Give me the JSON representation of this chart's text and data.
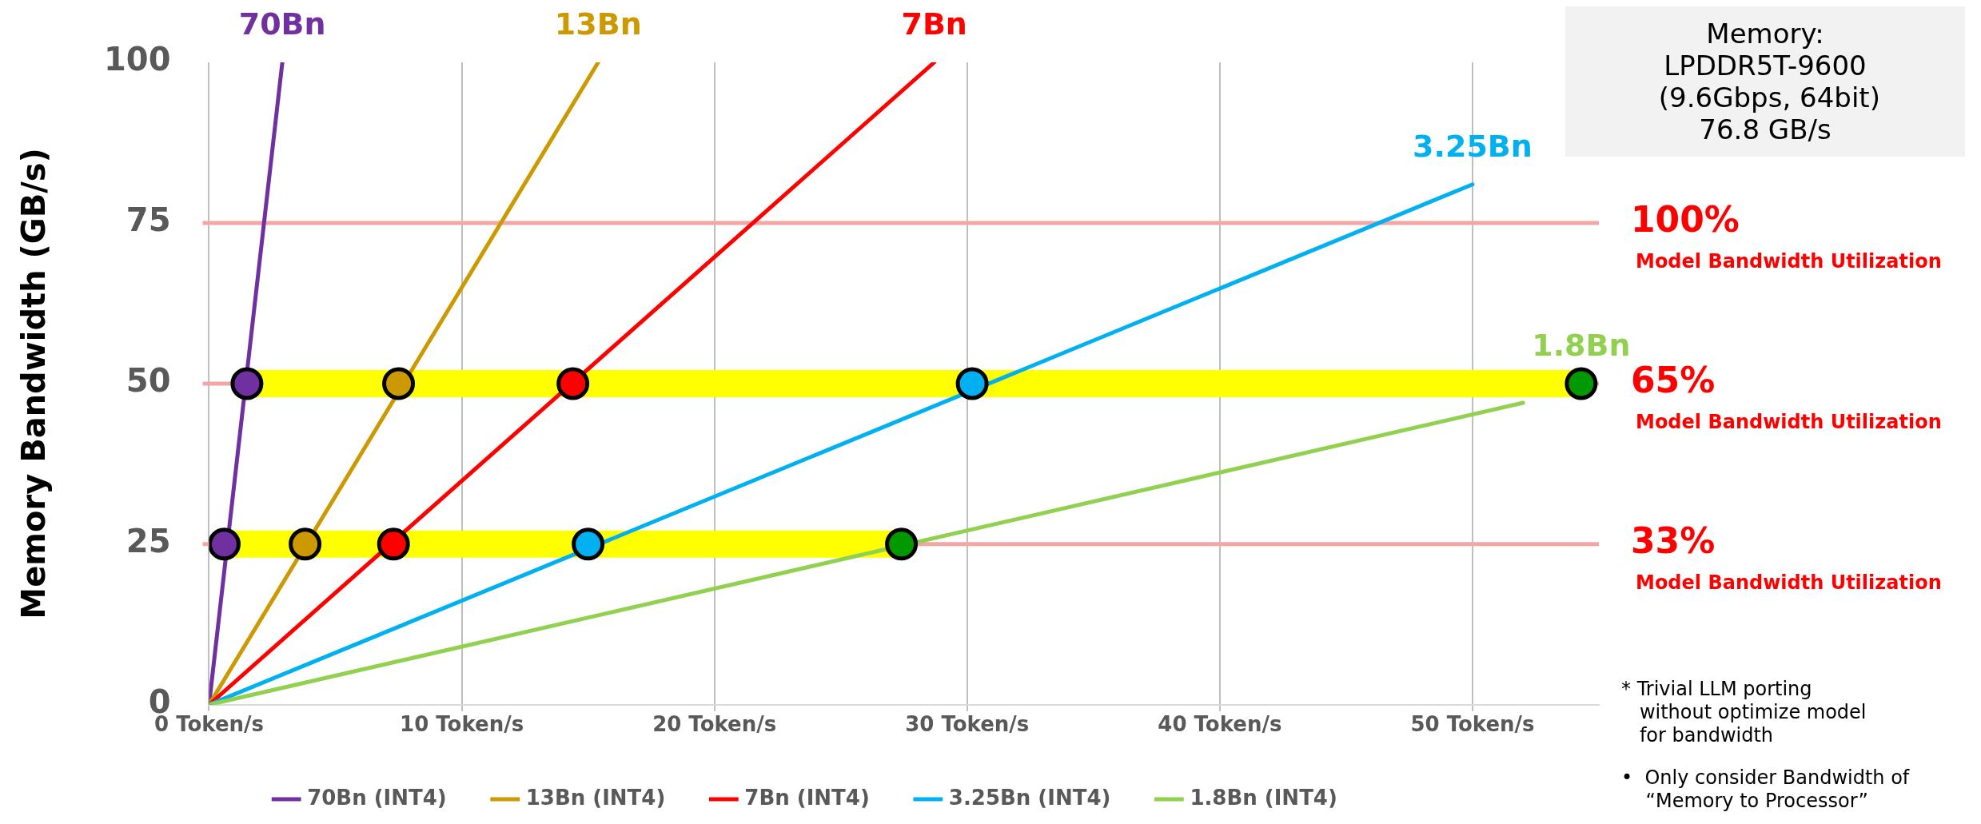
{
  "chart_data": {
    "type": "line",
    "ylabel": "Memory Bandwidth (GB/s)",
    "xlim": [
      0,
      55
    ],
    "xticks": [
      {
        "value": 0,
        "label": "0 Token/s"
      },
      {
        "value": 10,
        "label": "10 Token/s"
      },
      {
        "value": 20,
        "label": "20 Token/s"
      },
      {
        "value": 30,
        "label": "30 Token/s"
      },
      {
        "value": 40,
        "label": "40 Token/s"
      },
      {
        "value": 50,
        "label": "50 Token/s"
      }
    ],
    "ylim": [
      0,
      100
    ],
    "yticks": [
      0,
      25,
      50,
      75,
      100
    ],
    "grid": "x",
    "legend": "bottom",
    "series": [
      {
        "type": "line",
        "color": "#ffff00",
        "x": [
          1.5,
          54.3
        ],
        "values": [
          50,
          50
        ]
      },
      {
        "type": "line",
        "color": "#ffff00",
        "x": [
          0.6,
          27.4
        ],
        "values": [
          25,
          25
        ]
      },
      {
        "type": "line",
        "name": "70Bn (INT4)",
        "color": "#7030a0",
        "x": [
          0,
          2.9
        ],
        "values": [
          0,
          100
        ]
      },
      {
        "type": "line",
        "name": "13Bn (INT4)",
        "color": "#cc9900",
        "x": [
          0,
          15.4
        ],
        "values": [
          0,
          100
        ]
      },
      {
        "type": "line",
        "name": "7Bn (INT4)",
        "color": "#ff0000",
        "x": [
          0,
          28.7
        ],
        "values": [
          0,
          100
        ]
      },
      {
        "type": "line",
        "name": "3.25Bn (INT4)",
        "color": "#00b0f0",
        "x": [
          0,
          50
        ],
        "values": [
          0,
          81
        ]
      },
      {
        "type": "line",
        "name": "1.8Bn (INT4)",
        "color": "#92d050",
        "x": [
          0,
          52
        ],
        "values": [
          0,
          47
        ]
      },
      {
        "type": "scatter",
        "marker": "circle",
        "colors": [
          "#7030a0",
          "#cc9900",
          "#ff0000",
          "#00b0f0",
          "#009900"
        ],
        "x": [
          1.5,
          7.5,
          14.4,
          30.2,
          54.3
        ],
        "values": [
          50,
          50,
          50,
          50,
          50
        ]
      },
      {
        "type": "scatter",
        "marker": "circle",
        "colors": [
          "#7030a0",
          "#cc9900",
          "#ff0000",
          "#00b0f0",
          "#009900"
        ],
        "x": [
          0.6,
          3.8,
          7.3,
          15.0,
          27.4
        ],
        "values": [
          25,
          25,
          25,
          25,
          25
        ]
      }
    ],
    "ref_lines": [
      {
        "axis": "y",
        "value": 75,
        "label": "100%\nModel Bandwidth Utilization",
        "color": "#f4a6a6"
      },
      {
        "axis": "y",
        "value": 50,
        "label": "65%\nModel Bandwidth Utilization",
        "color": "#f4a6a6"
      },
      {
        "axis": "y",
        "value": 25,
        "label": "33%\nModel Bandwidth Utilization",
        "color": "#f4a6a6"
      }
    ],
    "annotations": [
      {
        "text": "70Bn",
        "x": 2.9,
        "y": 100
      },
      {
        "text": "13Bn",
        "x": 15.4,
        "y": 100
      },
      {
        "text": "7Bn",
        "x": 28.7,
        "y": 100
      },
      {
        "text": "3.25Bn",
        "x": 50,
        "y": 81
      },
      {
        "text": "1.8Bn",
        "x": 54.3,
        "y": 50
      },
      "Memory:\nLPDDR5T-9600\n (9.6Gbps, 64bit)\n76.8 GB/s",
      "* Trivial LLM porting\n   without optimize model\n   for bandwidth",
      "•  Only consider Bandwidth of\n    “Memory to Processor”"
    ]
  }
}
